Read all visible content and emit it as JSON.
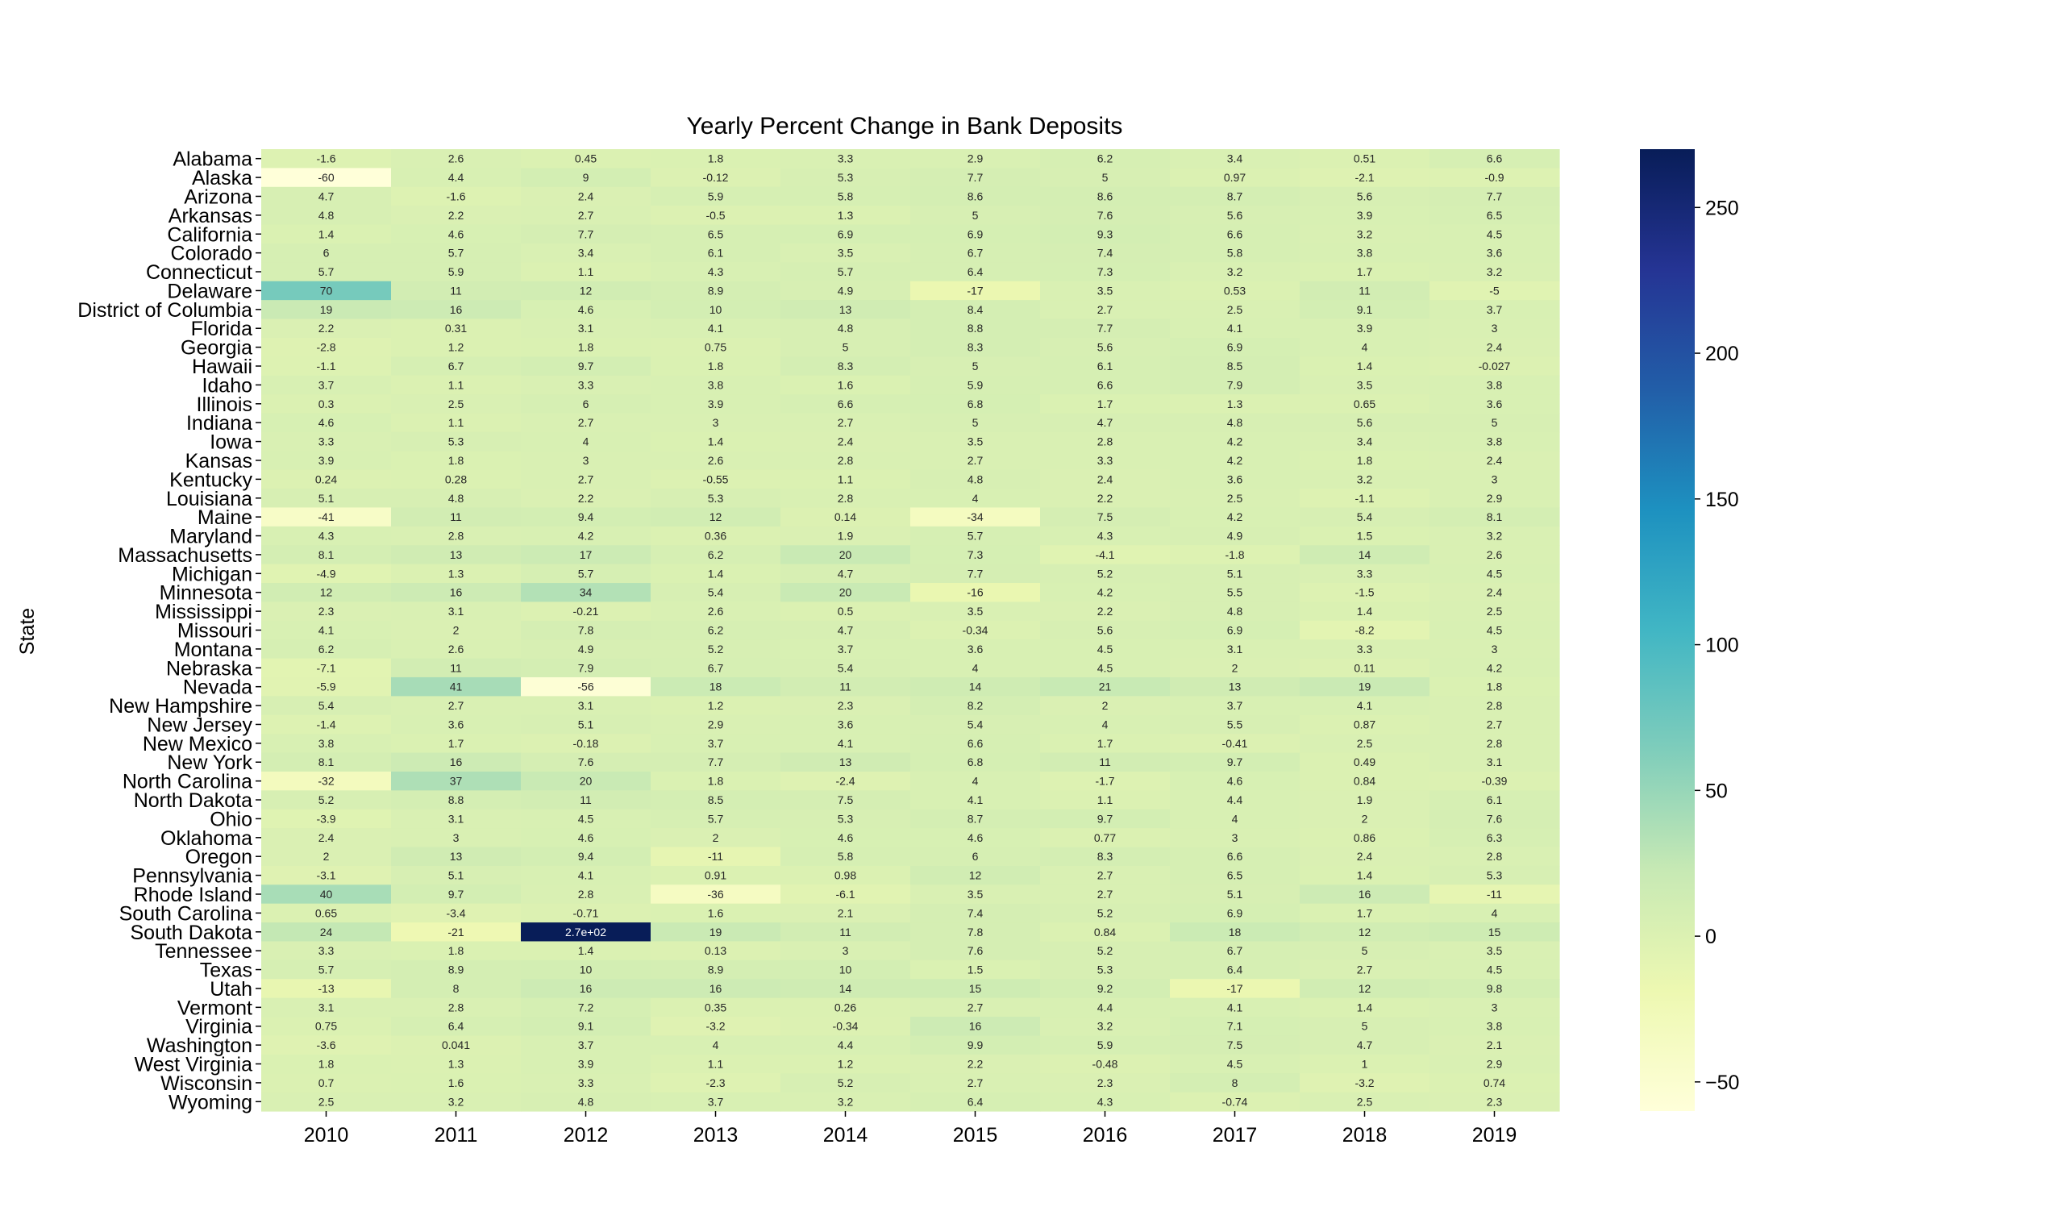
{
  "chart_data": {
    "type": "heatmap",
    "title": "Yearly Percent Change in Bank Deposits",
    "xlabel": "",
    "ylabel": "State",
    "colormap": "YlGnBu",
    "colorbar_range": [
      -60,
      270
    ],
    "colorbar_ticks": [
      "−50",
      "0",
      "50",
      "100",
      "150",
      "200",
      "250"
    ],
    "columns": [
      "2010",
      "2011",
      "2012",
      "2013",
      "2014",
      "2015",
      "2016",
      "2017",
      "2018",
      "2019"
    ],
    "rows": [
      "Alabama",
      "Alaska",
      "Arizona",
      "Arkansas",
      "California",
      "Colorado",
      "Connecticut",
      "Delaware",
      "District of Columbia",
      "Florida",
      "Georgia",
      "Hawaii",
      "Idaho",
      "Illinois",
      "Indiana",
      "Iowa",
      "Kansas",
      "Kentucky",
      "Louisiana",
      "Maine",
      "Maryland",
      "Massachusetts",
      "Michigan",
      "Minnesota",
      "Mississippi",
      "Missouri",
      "Montana",
      "Nebraska",
      "Nevada",
      "New Hampshire",
      "New Jersey",
      "New Mexico",
      "New York",
      "North Carolina",
      "North Dakota",
      "Ohio",
      "Oklahoma",
      "Oregon",
      "Pennsylvania",
      "Rhode Island",
      "South Carolina",
      "South Dakota",
      "Tennessee",
      "Texas",
      "Utah",
      "Vermont",
      "Virginia",
      "Washington",
      "West Virginia",
      "Wisconsin",
      "Wyoming"
    ],
    "labels": [
      [
        "-1.6",
        "2.6",
        "0.45",
        "1.8",
        "3.3",
        "2.9",
        "6.2",
        "3.4",
        "0.51",
        "6.6"
      ],
      [
        "-60",
        "4.4",
        "9",
        "-0.12",
        "5.3",
        "7.7",
        "5",
        "0.97",
        "-2.1",
        "-0.9"
      ],
      [
        "4.7",
        "-1.6",
        "2.4",
        "5.9",
        "5.8",
        "8.6",
        "8.6",
        "8.7",
        "5.6",
        "7.7"
      ],
      [
        "4.8",
        "2.2",
        "2.7",
        "-0.5",
        "1.3",
        "5",
        "7.6",
        "5.6",
        "3.9",
        "6.5"
      ],
      [
        "1.4",
        "4.6",
        "7.7",
        "6.5",
        "6.9",
        "6.9",
        "9.3",
        "6.6",
        "3.2",
        "4.5"
      ],
      [
        "6",
        "5.7",
        "3.4",
        "6.1",
        "3.5",
        "6.7",
        "7.4",
        "5.8",
        "3.8",
        "3.6"
      ],
      [
        "5.7",
        "5.9",
        "1.1",
        "4.3",
        "5.7",
        "6.4",
        "7.3",
        "3.2",
        "1.7",
        "3.2"
      ],
      [
        "70",
        "11",
        "12",
        "8.9",
        "4.9",
        "-17",
        "3.5",
        "0.53",
        "11",
        "-5"
      ],
      [
        "19",
        "16",
        "4.6",
        "10",
        "13",
        "8.4",
        "2.7",
        "2.5",
        "9.1",
        "3.7"
      ],
      [
        "2.2",
        "0.31",
        "3.1",
        "4.1",
        "4.8",
        "8.8",
        "7.7",
        "4.1",
        "3.9",
        "3"
      ],
      [
        "-2.8",
        "1.2",
        "1.8",
        "0.75",
        "5",
        "8.3",
        "5.6",
        "6.9",
        "4",
        "2.4"
      ],
      [
        "-1.1",
        "6.7",
        "9.7",
        "1.8",
        "8.3",
        "5",
        "6.1",
        "8.5",
        "1.4",
        "-0.027"
      ],
      [
        "3.7",
        "1.1",
        "3.3",
        "3.8",
        "1.6",
        "5.9",
        "6.6",
        "7.9",
        "3.5",
        "3.8"
      ],
      [
        "0.3",
        "2.5",
        "6",
        "3.9",
        "6.6",
        "6.8",
        "1.7",
        "1.3",
        "0.65",
        "3.6"
      ],
      [
        "4.6",
        "1.1",
        "2.7",
        "3",
        "2.7",
        "5",
        "4.7",
        "4.8",
        "5.6",
        "5"
      ],
      [
        "3.3",
        "5.3",
        "4",
        "1.4",
        "2.4",
        "3.5",
        "2.8",
        "4.2",
        "3.4",
        "3.8"
      ],
      [
        "3.9",
        "1.8",
        "3",
        "2.6",
        "2.8",
        "2.7",
        "3.3",
        "4.2",
        "1.8",
        "2.4"
      ],
      [
        "0.24",
        "0.28",
        "2.7",
        "-0.55",
        "1.1",
        "4.8",
        "2.4",
        "3.6",
        "3.2",
        "3"
      ],
      [
        "5.1",
        "4.8",
        "2.2",
        "5.3",
        "2.8",
        "4",
        "2.2",
        "2.5",
        "-1.1",
        "2.9"
      ],
      [
        "-41",
        "11",
        "9.4",
        "12",
        "0.14",
        "-34",
        "7.5",
        "4.2",
        "5.4",
        "8.1"
      ],
      [
        "4.3",
        "2.8",
        "4.2",
        "0.36",
        "1.9",
        "5.7",
        "4.3",
        "4.9",
        "1.5",
        "3.2"
      ],
      [
        "8.1",
        "13",
        "17",
        "6.2",
        "20",
        "7.3",
        "-4.1",
        "-1.8",
        "14",
        "2.6"
      ],
      [
        "-4.9",
        "1.3",
        "5.7",
        "1.4",
        "4.7",
        "7.7",
        "5.2",
        "5.1",
        "3.3",
        "4.5"
      ],
      [
        "12",
        "16",
        "34",
        "5.4",
        "20",
        "-16",
        "4.2",
        "5.5",
        "-1.5",
        "2.4"
      ],
      [
        "2.3",
        "3.1",
        "-0.21",
        "2.6",
        "0.5",
        "3.5",
        "2.2",
        "4.8",
        "1.4",
        "2.5"
      ],
      [
        "4.1",
        "2",
        "7.8",
        "6.2",
        "4.7",
        "-0.34",
        "5.6",
        "6.9",
        "-8.2",
        "4.5"
      ],
      [
        "6.2",
        "2.6",
        "4.9",
        "5.2",
        "3.7",
        "3.6",
        "4.5",
        "3.1",
        "3.3",
        "3"
      ],
      [
        "-7.1",
        "11",
        "7.9",
        "6.7",
        "5.4",
        "4",
        "4.5",
        "2",
        "0.11",
        "4.2"
      ],
      [
        "-5.9",
        "41",
        "-56",
        "18",
        "11",
        "14",
        "21",
        "13",
        "19",
        "1.8"
      ],
      [
        "5.4",
        "2.7",
        "3.1",
        "1.2",
        "2.3",
        "8.2",
        "2",
        "3.7",
        "4.1",
        "2.8"
      ],
      [
        "-1.4",
        "3.6",
        "5.1",
        "2.9",
        "3.6",
        "5.4",
        "4",
        "5.5",
        "0.87",
        "2.7"
      ],
      [
        "3.8",
        "1.7",
        "-0.18",
        "3.7",
        "4.1",
        "6.6",
        "1.7",
        "-0.41",
        "2.5",
        "2.8"
      ],
      [
        "8.1",
        "16",
        "7.6",
        "7.7",
        "13",
        "6.8",
        "11",
        "9.7",
        "0.49",
        "3.1"
      ],
      [
        "-32",
        "37",
        "20",
        "1.8",
        "-2.4",
        "4",
        "-1.7",
        "4.6",
        "0.84",
        "-0.39"
      ],
      [
        "5.2",
        "8.8",
        "11",
        "8.5",
        "7.5",
        "4.1",
        "1.1",
        "4.4",
        "1.9",
        "6.1"
      ],
      [
        "-3.9",
        "3.1",
        "4.5",
        "5.7",
        "5.3",
        "8.7",
        "9.7",
        "4",
        "2",
        "7.6"
      ],
      [
        "2.4",
        "3",
        "4.6",
        "2",
        "4.6",
        "4.6",
        "0.77",
        "3",
        "0.86",
        "6.3"
      ],
      [
        "2",
        "13",
        "9.4",
        "-11",
        "5.8",
        "6",
        "8.3",
        "6.6",
        "2.4",
        "2.8"
      ],
      [
        "-3.1",
        "5.1",
        "4.1",
        "0.91",
        "0.98",
        "12",
        "2.7",
        "6.5",
        "1.4",
        "5.3"
      ],
      [
        "40",
        "9.7",
        "2.8",
        "-36",
        "-6.1",
        "3.5",
        "2.7",
        "5.1",
        "16",
        "-11"
      ],
      [
        "0.65",
        "-3.4",
        "-0.71",
        "1.6",
        "2.1",
        "7.4",
        "5.2",
        "6.9",
        "1.7",
        "4"
      ],
      [
        "24",
        "-21",
        "2.7e+02",
        "19",
        "11",
        "7.8",
        "0.84",
        "18",
        "12",
        "15"
      ],
      [
        "3.3",
        "1.8",
        "1.4",
        "0.13",
        "3",
        "7.6",
        "5.2",
        "6.7",
        "5",
        "3.5"
      ],
      [
        "5.7",
        "8.9",
        "10",
        "8.9",
        "10",
        "1.5",
        "5.3",
        "6.4",
        "2.7",
        "4.5"
      ],
      [
        "-13",
        "8",
        "16",
        "16",
        "14",
        "15",
        "9.2",
        "-17",
        "12",
        "9.8"
      ],
      [
        "3.1",
        "2.8",
        "7.2",
        "0.35",
        "0.26",
        "2.7",
        "4.4",
        "4.1",
        "1.4",
        "3"
      ],
      [
        "0.75",
        "6.4",
        "9.1",
        "-3.2",
        "-0.34",
        "16",
        "3.2",
        "7.1",
        "5",
        "3.8"
      ],
      [
        "-3.6",
        "0.041",
        "3.7",
        "4",
        "4.4",
        "9.9",
        "5.9",
        "7.5",
        "4.7",
        "2.1"
      ],
      [
        "1.8",
        "1.3",
        "3.9",
        "1.1",
        "1.2",
        "2.2",
        "-0.48",
        "4.5",
        "1",
        "2.9"
      ],
      [
        "0.7",
        "1.6",
        "3.3",
        "-2.3",
        "5.2",
        "2.7",
        "2.3",
        "8",
        "-3.2",
        "0.74"
      ],
      [
        "2.5",
        "3.2",
        "4.8",
        "3.7",
        "3.2",
        "6.4",
        "4.3",
        "-0.74",
        "2.5",
        "2.3"
      ]
    ]
  }
}
